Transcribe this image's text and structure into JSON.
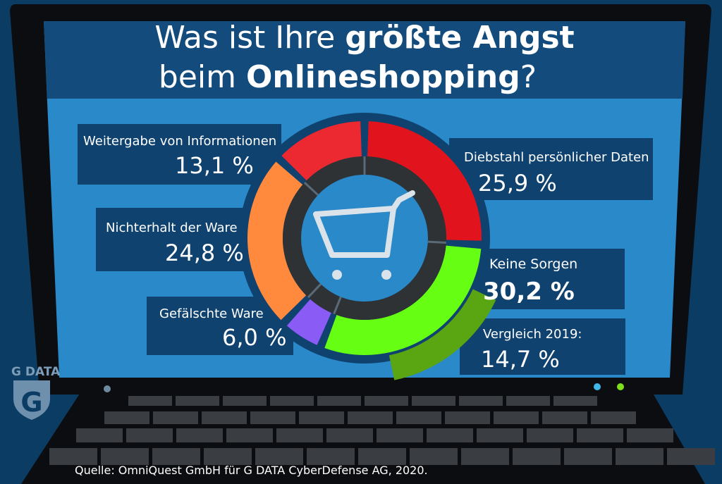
{
  "title": {
    "line1_regular": "Was ist Ihre ",
    "line1_bold": "größte Angst",
    "line2_regular": "beim ",
    "line2_bold": "Onlineshopping",
    "line2_end": "?"
  },
  "source": "Quelle: OmniQuest GmbH für G DATA CyberDefense AG, 2020.",
  "logo": {
    "text": "G DATA",
    "letter": "G"
  },
  "colors": {
    "background": "#0b3c63",
    "screen": "#2a89c8",
    "title_bar": "#124b7c",
    "label_box": "#0f426f",
    "ring_track": "#2f3235",
    "center": "#2a89c8"
  },
  "icons": {
    "center": "shopping-cart-icon"
  },
  "chart_data": {
    "type": "pie",
    "title": "Was ist Ihre größte Angst beim Onlineshopping?",
    "unit": "%",
    "slices": [
      {
        "name": "Diebstahl persönlicher Daten",
        "value": 25.9,
        "label": "25,9 %",
        "color": "#e1141e"
      },
      {
        "name": "Keine Sorgen",
        "value": 30.2,
        "label": "30,2 %",
        "color": "#66ff14"
      },
      {
        "name": "Gefälschte Ware",
        "value": 6.0,
        "label": "6,0 %",
        "color": "#8a5cf5"
      },
      {
        "name": "Nichterhalt der Ware",
        "value": 24.8,
        "label": "24,8 %",
        "color": "#ff8a3d"
      },
      {
        "name": "Weitergabe von Informationen",
        "value": 13.1,
        "label": "13,1 %",
        "color": "#ec2830"
      }
    ],
    "comparison": {
      "name": "Vergleich 2019:",
      "value": 14.7,
      "label": "14,7 %",
      "color": "#5aa612"
    }
  }
}
